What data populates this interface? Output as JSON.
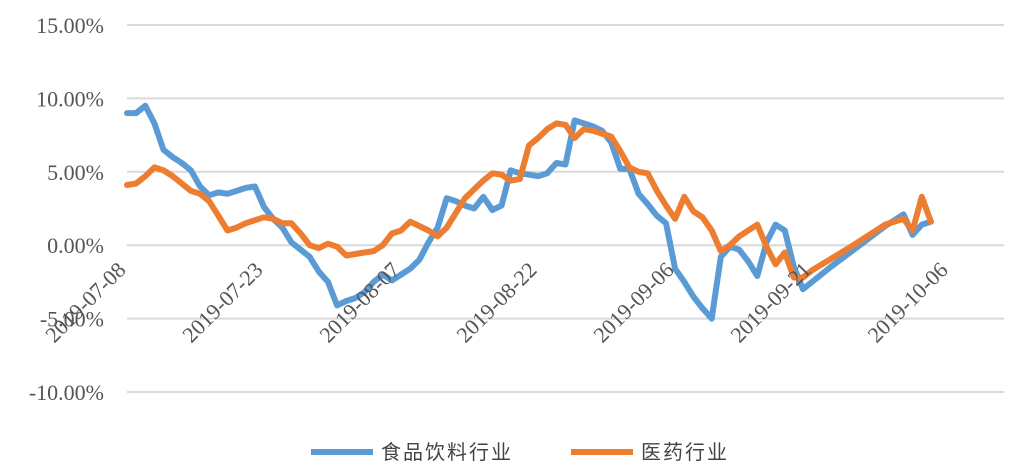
{
  "chart_data": {
    "type": "line",
    "title": "",
    "xlabel": "",
    "ylabel": "",
    "ylim": [
      -0.1,
      0.15
    ],
    "y_ticks": [
      0.15,
      0.1,
      0.05,
      0.0,
      -0.05,
      -0.1
    ],
    "y_tick_labels": [
      "15.00%",
      "10.00%",
      "5.00%",
      "0.00%",
      "-5.00%",
      "-10.00%"
    ],
    "x_tick_labels": [
      "2019-07-08",
      "2019-07-23",
      "2019-08-07",
      "2019-08-22",
      "2019-09-06",
      "2019-09-21",
      "2019-10-06"
    ],
    "x_range_days": [
      0,
      96
    ],
    "grid": true,
    "legend_position": "bottom",
    "series": [
      {
        "name": "食品饮料行业",
        "color": "#5B9BD5",
        "points": [
          [
            0,
            0.09
          ],
          [
            1,
            0.09
          ],
          [
            2,
            0.095
          ],
          [
            3,
            0.083
          ],
          [
            4,
            0.065
          ],
          [
            5,
            0.06
          ],
          [
            6,
            0.056
          ],
          [
            7,
            0.051
          ],
          [
            8,
            0.04
          ],
          [
            9,
            0.034
          ],
          [
            10,
            0.036
          ],
          [
            11,
            0.035
          ],
          [
            12,
            0.037
          ],
          [
            13,
            0.039
          ],
          [
            14,
            0.04
          ],
          [
            15,
            0.026
          ],
          [
            16,
            0.018
          ],
          [
            17,
            0.012
          ],
          [
            18,
            0.002
          ],
          [
            19,
            -0.003
          ],
          [
            20,
            -0.008
          ],
          [
            21,
            -0.018
          ],
          [
            22,
            -0.025
          ],
          [
            23,
            -0.041
          ],
          [
            24,
            -0.038
          ],
          [
            25,
            -0.036
          ],
          [
            26,
            -0.032
          ],
          [
            27,
            -0.025
          ],
          [
            28,
            -0.02
          ],
          [
            29,
            -0.024
          ],
          [
            30,
            -0.02
          ],
          [
            31,
            -0.016
          ],
          [
            32,
            -0.01
          ],
          [
            33,
            0.002
          ],
          [
            34,
            0.012
          ],
          [
            35,
            0.032
          ],
          [
            36,
            0.03
          ],
          [
            37,
            0.027
          ],
          [
            38,
            0.025
          ],
          [
            39,
            0.033
          ],
          [
            40,
            0.024
          ],
          [
            41,
            0.027
          ],
          [
            42,
            0.051
          ],
          [
            43,
            0.049
          ],
          [
            44,
            0.048
          ],
          [
            45,
            0.047
          ],
          [
            46,
            0.049
          ],
          [
            47,
            0.056
          ],
          [
            48,
            0.055
          ],
          [
            49,
            0.085
          ],
          [
            50,
            0.083
          ],
          [
            51,
            0.081
          ],
          [
            52,
            0.078
          ],
          [
            53,
            0.07
          ],
          [
            54,
            0.052
          ],
          [
            55,
            0.052
          ],
          [
            56,
            0.035
          ],
          [
            57,
            0.028
          ],
          [
            58,
            0.02
          ],
          [
            59,
            0.015
          ],
          [
            60,
            -0.016
          ],
          [
            61,
            -0.025
          ],
          [
            62,
            -0.035
          ],
          [
            63,
            -0.043
          ],
          [
            64,
            -0.05
          ],
          [
            65,
            -0.008
          ],
          [
            66,
            -0.001
          ],
          [
            67,
            -0.003
          ],
          [
            68,
            -0.011
          ],
          [
            69,
            -0.021
          ],
          [
            70,
            0.002
          ],
          [
            71,
            0.014
          ],
          [
            72,
            0.01
          ],
          [
            73,
            -0.015
          ],
          [
            74,
            -0.03
          ],
          [
            77,
            -0.015
          ],
          [
            80,
            -0.001
          ],
          [
            83,
            0.013
          ],
          [
            85,
            0.021
          ],
          [
            86,
            0.007
          ],
          [
            87,
            0.014
          ],
          [
            88,
            0.016
          ]
        ]
      },
      {
        "name": "医药行业",
        "color": "#ED7D31",
        "points": [
          [
            0,
            0.041
          ],
          [
            1,
            0.042
          ],
          [
            2,
            0.047
          ],
          [
            3,
            0.053
          ],
          [
            4,
            0.051
          ],
          [
            5,
            0.047
          ],
          [
            6,
            0.042
          ],
          [
            7,
            0.037
          ],
          [
            8,
            0.035
          ],
          [
            9,
            0.03
          ],
          [
            10,
            0.02
          ],
          [
            11,
            0.01
          ],
          [
            12,
            0.012
          ],
          [
            13,
            0.015
          ],
          [
            14,
            0.017
          ],
          [
            15,
            0.019
          ],
          [
            16,
            0.018
          ],
          [
            17,
            0.015
          ],
          [
            18,
            0.015
          ],
          [
            19,
            0.008
          ],
          [
            20,
            0.0
          ],
          [
            21,
            -0.002
          ],
          [
            22,
            0.001
          ],
          [
            23,
            -0.001
          ],
          [
            24,
            -0.007
          ],
          [
            26,
            -0.005
          ],
          [
            27,
            -0.004
          ],
          [
            28,
            0.0
          ],
          [
            29,
            0.008
          ],
          [
            30,
            0.01
          ],
          [
            31,
            0.016
          ],
          [
            33,
            0.01
          ],
          [
            34,
            0.006
          ],
          [
            35,
            0.012
          ],
          [
            36,
            0.022
          ],
          [
            37,
            0.032
          ],
          [
            38,
            0.038
          ],
          [
            39,
            0.044
          ],
          [
            40,
            0.049
          ],
          [
            41,
            0.048
          ],
          [
            42,
            0.044
          ],
          [
            43,
            0.045
          ],
          [
            44,
            0.068
          ],
          [
            45,
            0.073
          ],
          [
            46,
            0.079
          ],
          [
            47,
            0.083
          ],
          [
            48,
            0.082
          ],
          [
            49,
            0.073
          ],
          [
            50,
            0.079
          ],
          [
            51,
            0.078
          ],
          [
            52,
            0.076
          ],
          [
            53,
            0.074
          ],
          [
            54,
            0.064
          ],
          [
            55,
            0.053
          ],
          [
            56,
            0.05
          ],
          [
            57,
            0.049
          ],
          [
            58,
            0.037
          ],
          [
            59,
            0.027
          ],
          [
            60,
            0.018
          ],
          [
            61,
            0.033
          ],
          [
            62,
            0.023
          ],
          [
            63,
            0.019
          ],
          [
            64,
            0.01
          ],
          [
            65,
            -0.004
          ],
          [
            66,
            0.0
          ],
          [
            67,
            0.006
          ],
          [
            68,
            0.01
          ],
          [
            69,
            0.014
          ],
          [
            70,
            -0.001
          ],
          [
            71,
            -0.013
          ],
          [
            72,
            -0.005
          ],
          [
            73,
            -0.022
          ],
          [
            74,
            -0.022
          ],
          [
            75,
            -0.017
          ],
          [
            79,
            -0.002
          ],
          [
            83,
            0.014
          ],
          [
            85,
            0.018
          ],
          [
            86,
            0.01
          ],
          [
            87,
            0.033
          ],
          [
            88,
            0.016
          ]
        ]
      }
    ]
  }
}
